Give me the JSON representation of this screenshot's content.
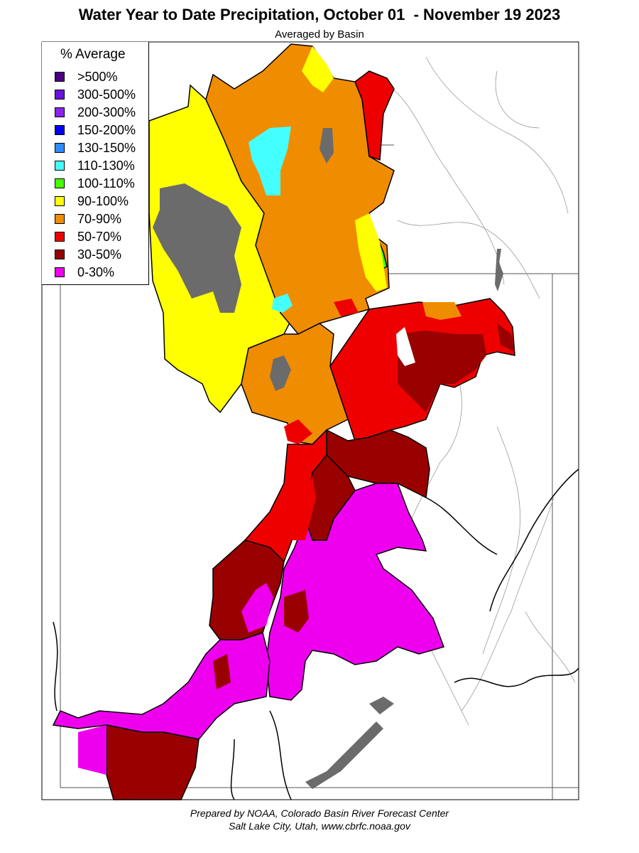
{
  "title": "Water Year to Date Precipitation, October 01  - November 19 2023",
  "subtitle": "Averaged by Basin",
  "legend": {
    "title": "% Average",
    "items": [
      {
        "label": ">500%",
        "color": "#4b0082"
      },
      {
        "label": "300-500%",
        "color": "#6a10e0"
      },
      {
        "label": "200-300%",
        "color": "#8b22f0"
      },
      {
        "label": "150-200%",
        "color": "#0000ff"
      },
      {
        "label": "130-150%",
        "color": "#2e8bff"
      },
      {
        "label": "110-130%",
        "color": "#44ffff"
      },
      {
        "label": "100-110%",
        "color": "#44ff00"
      },
      {
        "label": "90-100%",
        "color": "#ffff00"
      },
      {
        "label": "70-90%",
        "color": "#f08c00"
      },
      {
        "label": "50-70%",
        "color": "#ee0000"
      },
      {
        "label": "30-50%",
        "color": "#990000"
      },
      {
        "label": "0-30%",
        "color": "#ee00ee"
      }
    ]
  },
  "no_data_color": "#6b6b6b",
  "credits": {
    "line1": "Prepared by NOAA, Colorado Basin River Forecast Center",
    "line2": "Salt Lake City, Utah, www.cbrfc.noaa.gov"
  }
}
